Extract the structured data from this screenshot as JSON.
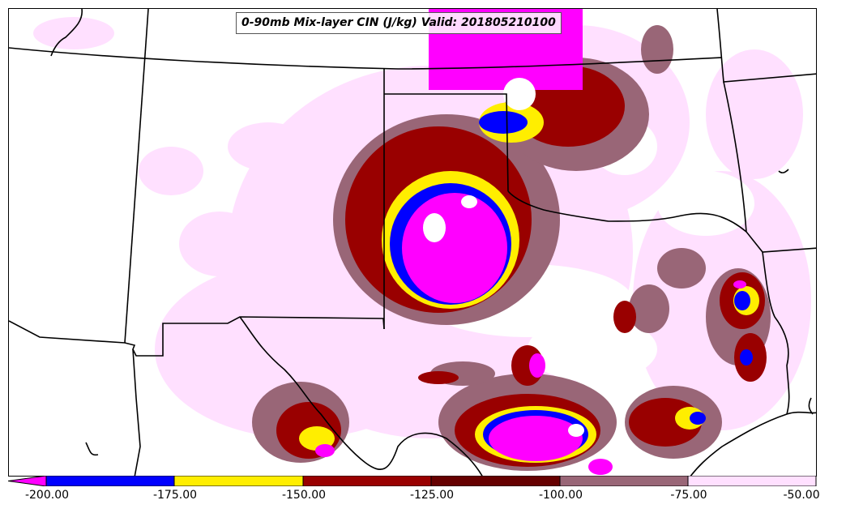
{
  "title": "0-90mb Mix-layer CIN (J/kg) Valid: 201805210100",
  "colorbar": {
    "ticks": [
      "-200.00",
      "-175.00",
      "-150.00",
      "-125.00",
      "-100.00",
      "-75.00",
      "-50.00"
    ],
    "bins": [
      {
        "range": "< -200",
        "color": "#ff00ff"
      },
      {
        "range": "-200 to -175",
        "color": "#0000ff"
      },
      {
        "range": "-175 to -150",
        "color": "#ffee00"
      },
      {
        "range": "-150 to -125",
        "color": "#990000"
      },
      {
        "range": "-125 to -100",
        "color": "#660000"
      },
      {
        "range": "-100 to -75",
        "color": "#996677"
      },
      {
        "range": "-75 to -50",
        "color": "#ffe0ff"
      }
    ]
  },
  "map": {
    "region": "Southern Plains (Oklahoma / Texas / Kansas area)",
    "borders_color": "#000000"
  }
}
